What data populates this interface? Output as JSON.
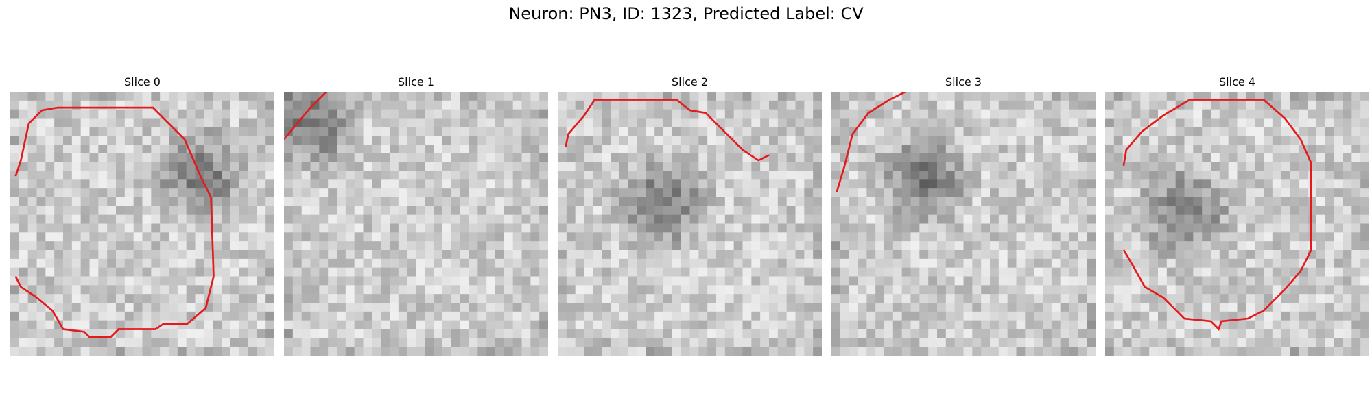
{
  "figure": {
    "title": "Neuron: PN3, ID: 1323, Predicted Label: CV"
  },
  "panels": [
    {
      "title": "Slice 0",
      "seed": 11,
      "dark": [
        0.72,
        0.32
      ],
      "contour": [
        [
          0.02,
          0.32
        ],
        [
          0.04,
          0.26
        ],
        [
          0.07,
          0.12
        ],
        [
          0.12,
          0.07
        ],
        [
          0.18,
          0.06
        ],
        [
          0.54,
          0.06
        ],
        [
          0.66,
          0.18
        ],
        [
          0.72,
          0.32
        ],
        [
          0.76,
          0.4
        ],
        [
          0.77,
          0.7
        ],
        [
          0.74,
          0.82
        ],
        [
          0.67,
          0.88
        ],
        [
          0.58,
          0.88
        ],
        [
          0.55,
          0.9
        ],
        [
          0.41,
          0.9
        ],
        [
          0.38,
          0.93
        ],
        [
          0.3,
          0.93
        ],
        [
          0.28,
          0.91
        ],
        [
          0.2,
          0.9
        ],
        [
          0.16,
          0.83
        ],
        [
          0.1,
          0.78
        ],
        [
          0.04,
          0.74
        ],
        [
          0.02,
          0.7
        ]
      ]
    },
    {
      "title": "Slice 1",
      "seed": 23,
      "dark": [
        0.1,
        0.12
      ],
      "contour": [
        [
          0.0,
          0.18
        ],
        [
          0.05,
          0.12
        ],
        [
          0.1,
          0.06
        ],
        [
          0.16,
          0.0
        ]
      ]
    },
    {
      "title": "Slice 2",
      "seed": 37,
      "dark": [
        0.4,
        0.42
      ],
      "contour": [
        [
          0.03,
          0.21
        ],
        [
          0.04,
          0.16
        ],
        [
          0.1,
          0.09
        ],
        [
          0.14,
          0.03
        ],
        [
          0.45,
          0.03
        ],
        [
          0.5,
          0.07
        ],
        [
          0.56,
          0.08
        ],
        [
          0.6,
          0.12
        ],
        [
          0.7,
          0.22
        ],
        [
          0.76,
          0.26
        ],
        [
          0.8,
          0.24
        ]
      ]
    },
    {
      "title": "Slice 3",
      "seed": 49,
      "dark": [
        0.35,
        0.33
      ],
      "contour": [
        [
          0.02,
          0.38
        ],
        [
          0.05,
          0.28
        ],
        [
          0.08,
          0.16
        ],
        [
          0.14,
          0.08
        ],
        [
          0.22,
          0.03
        ],
        [
          0.28,
          0.0
        ]
      ]
    },
    {
      "title": "Slice 4",
      "seed": 61,
      "dark": [
        0.3,
        0.45
      ],
      "contour": [
        [
          0.07,
          0.28
        ],
        [
          0.08,
          0.22
        ],
        [
          0.14,
          0.15
        ],
        [
          0.22,
          0.09
        ],
        [
          0.32,
          0.03
        ],
        [
          0.6,
          0.03
        ],
        [
          0.68,
          0.1
        ],
        [
          0.74,
          0.18
        ],
        [
          0.78,
          0.27
        ],
        [
          0.78,
          0.6
        ],
        [
          0.74,
          0.68
        ],
        [
          0.68,
          0.75
        ],
        [
          0.6,
          0.83
        ],
        [
          0.54,
          0.86
        ],
        [
          0.44,
          0.87
        ],
        [
          0.43,
          0.9
        ],
        [
          0.4,
          0.87
        ],
        [
          0.3,
          0.86
        ],
        [
          0.22,
          0.78
        ],
        [
          0.15,
          0.74
        ],
        [
          0.1,
          0.65
        ],
        [
          0.07,
          0.6
        ]
      ]
    }
  ]
}
